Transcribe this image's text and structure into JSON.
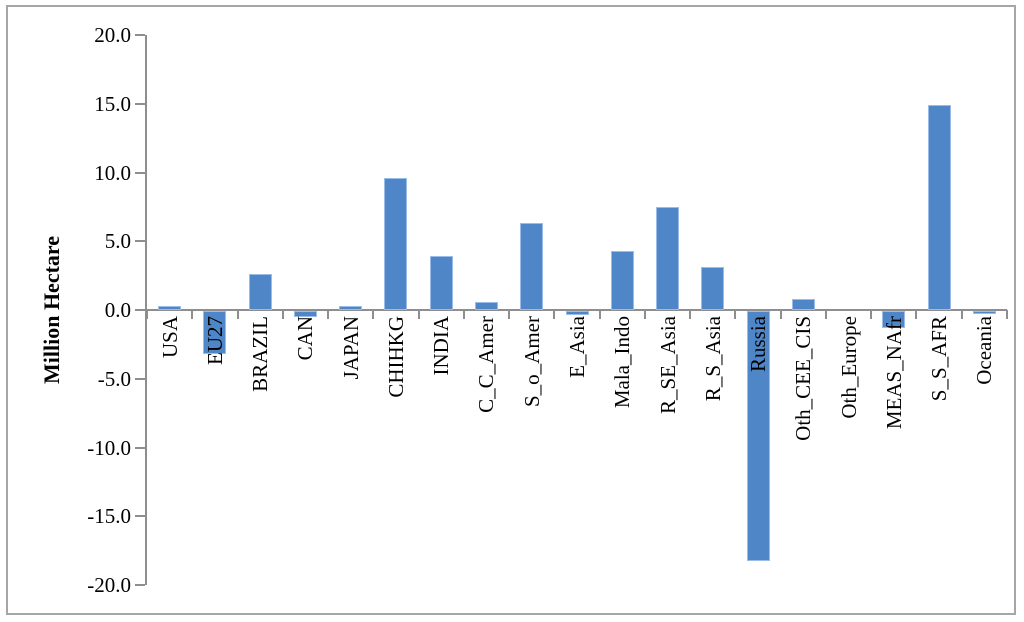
{
  "chart_data": {
    "type": "bar",
    "title": "",
    "ylabel": "Million Hectare",
    "xlabel": "",
    "ylim": [
      -20,
      20
    ],
    "ytick_step": 5,
    "ytick_labels": [
      "20.0",
      "15.0",
      "10.0",
      "5.0",
      "0.0",
      "-5.0",
      "-10.0",
      "-15.0",
      "-20.0"
    ],
    "categories": [
      "USA",
      "EU27",
      "BRAZIL",
      "CAN",
      "JAPAN",
      "CHIHKG",
      "INDIA",
      "C_C_Amer",
      "S_o_Amer",
      "E_Asia",
      "Mala_Indo",
      "R_SE_Asia",
      "R_S_Asia",
      "Russia",
      "Oth_CEE_CIS",
      "Oth_Europe",
      "MEAS_NAfr",
      "S_S_AFR",
      "Oceania"
    ],
    "values": [
      0.3,
      -3.1,
      2.6,
      -0.4,
      0.3,
      9.6,
      3.9,
      0.6,
      6.3,
      -0.3,
      4.3,
      7.5,
      3.1,
      -18.2,
      0.8,
      0.0,
      -1.2,
      14.9,
      -0.2
    ],
    "grid": false,
    "legend": false,
    "colors": {
      "bar_fill": "#4e86c8",
      "bar_border": "#9cbce8",
      "axis": "#8e8e8e",
      "text": "#000000",
      "figure_border": "#a6a6a6",
      "background": "#ffffff"
    }
  }
}
